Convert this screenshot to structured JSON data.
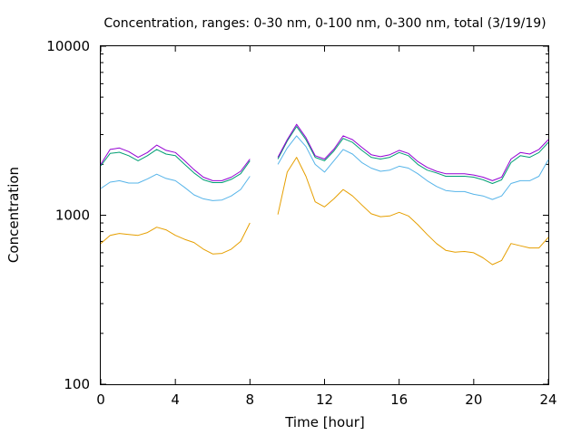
{
  "chart_data": {
    "type": "line",
    "title": "Concentration, ranges: 0-30 nm, 0-100 nm, 0-300 nm, total (3/19/19)",
    "xlabel": "Time [hour]",
    "ylabel": "Concentration",
    "xlim": [
      0,
      24
    ],
    "ylim": [
      100,
      10000
    ],
    "yscale": "log",
    "x_ticks": [
      0,
      4,
      8,
      12,
      16,
      20,
      24
    ],
    "x_tick_labels": [
      "0",
      "4",
      "8",
      "12",
      "16",
      "20",
      "24"
    ],
    "y_ticks": [
      100,
      1000,
      10000
    ],
    "y_tick_labels": [
      "100",
      "1000",
      "10000"
    ],
    "grid": false,
    "legend": "none",
    "gap_hours": [
      8.2,
      9.5
    ],
    "x": [
      0,
      0.5,
      1,
      1.5,
      2,
      2.5,
      3,
      3.5,
      4,
      4.5,
      5,
      5.5,
      6,
      6.5,
      7,
      7.5,
      8,
      9.5,
      10,
      10.5,
      11,
      11.5,
      12,
      12.5,
      13,
      13.5,
      14,
      14.5,
      15,
      15.5,
      16,
      16.5,
      17,
      17.5,
      18,
      18.5,
      19,
      19.5,
      20,
      20.5,
      21,
      21.5,
      22,
      22.5,
      23,
      23.5,
      24
    ],
    "series": [
      {
        "color": "#e69f00",
        "values": [
          680,
          760,
          780,
          770,
          760,
          790,
          850,
          820,
          760,
          720,
          690,
          630,
          590,
          595,
          630,
          700,
          900,
          1010,
          1800,
          2200,
          1700,
          1200,
          1120,
          1250,
          1420,
          1300,
          1150,
          1020,
          980,
          990,
          1040,
          990,
          880,
          770,
          680,
          620,
          605,
          610,
          600,
          560,
          510,
          540,
          680,
          660,
          640,
          640,
          740
        ]
      },
      {
        "color": "#56b4e9",
        "values": [
          1440,
          1570,
          1600,
          1550,
          1550,
          1640,
          1750,
          1650,
          1600,
          1460,
          1320,
          1250,
          1220,
          1230,
          1300,
          1420,
          1700,
          2000,
          2500,
          2950,
          2550,
          2000,
          1800,
          2100,
          2450,
          2300,
          2050,
          1900,
          1820,
          1850,
          1950,
          1900,
          1760,
          1600,
          1480,
          1400,
          1380,
          1380,
          1330,
          1300,
          1240,
          1300,
          1540,
          1600,
          1600,
          1700,
          2130
        ]
      },
      {
        "color": "#009e73",
        "values": [
          1960,
          2320,
          2360,
          2250,
          2100,
          2250,
          2450,
          2300,
          2250,
          2000,
          1780,
          1620,
          1560,
          1560,
          1630,
          1760,
          2100,
          2150,
          2750,
          3350,
          2800,
          2200,
          2100,
          2400,
          2850,
          2700,
          2420,
          2200,
          2150,
          2200,
          2350,
          2250,
          2000,
          1850,
          1780,
          1700,
          1700,
          1700,
          1680,
          1620,
          1540,
          1620,
          2050,
          2250,
          2200,
          2350,
          2700
        ]
      },
      {
        "color": "#9400d3",
        "values": [
          2000,
          2450,
          2500,
          2380,
          2200,
          2350,
          2600,
          2420,
          2350,
          2100,
          1860,
          1680,
          1600,
          1600,
          1680,
          1820,
          2150,
          2200,
          2800,
          3450,
          2880,
          2250,
          2150,
          2460,
          2950,
          2800,
          2520,
          2280,
          2220,
          2280,
          2420,
          2320,
          2080,
          1920,
          1820,
          1760,
          1760,
          1760,
          1730,
          1680,
          1600,
          1680,
          2150,
          2350,
          2300,
          2450,
          2800
        ]
      }
    ]
  }
}
